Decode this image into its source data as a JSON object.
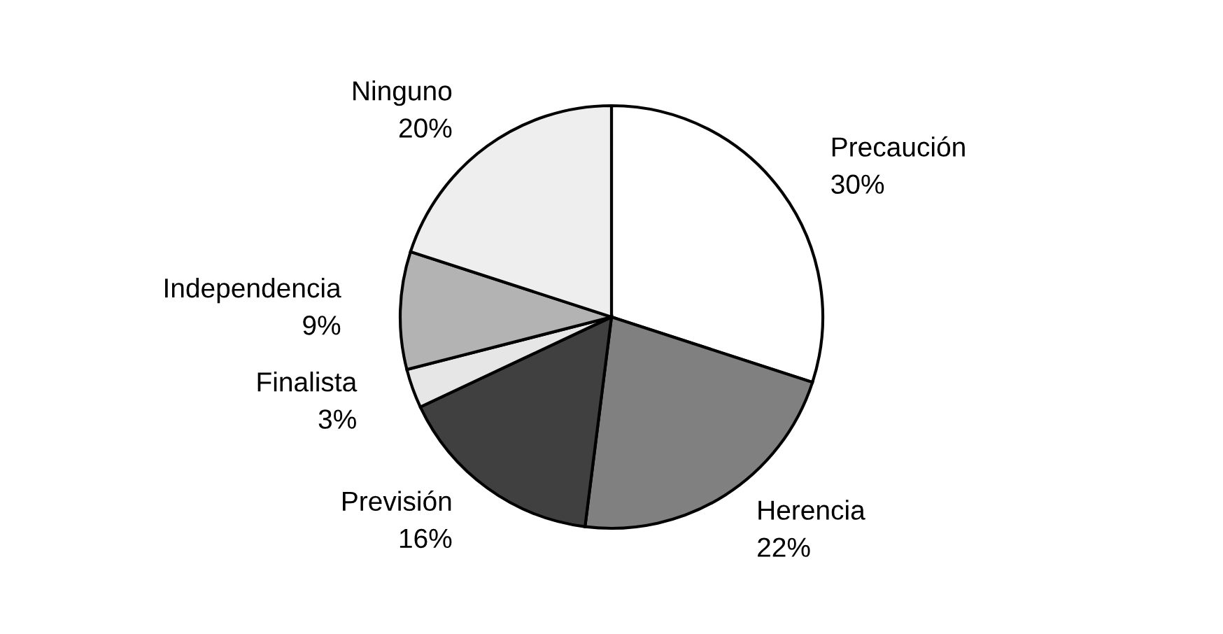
{
  "chart_data": {
    "type": "pie",
    "categories": [
      "Precaución",
      "Herencia",
      "Previsión",
      "Finalista",
      "Independencia",
      "Ninguno"
    ],
    "values": [
      30,
      22,
      16,
      3,
      9,
      20
    ],
    "value_labels": [
      "30%",
      "22%",
      "16%",
      "3%",
      "9%",
      "20%"
    ],
    "colors": [
      "#ffffff",
      "#808080",
      "#404040",
      "#e6e6e6",
      "#b3b3b3",
      "#eeeeee"
    ],
    "legend": false
  }
}
